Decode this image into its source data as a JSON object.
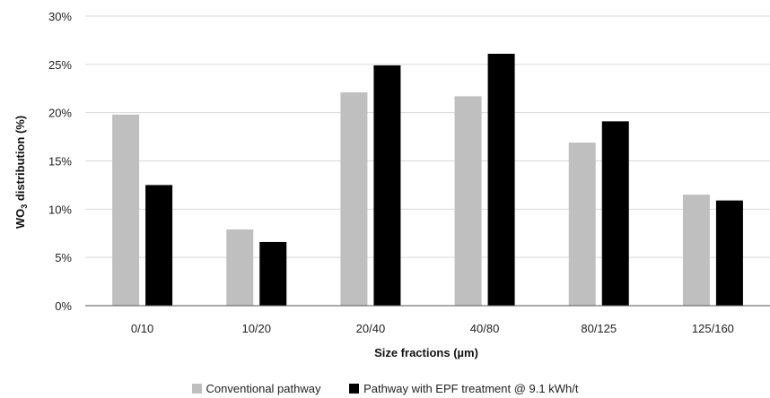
{
  "chart_data": {
    "type": "bar",
    "title": "",
    "xlabel": "Size fractions (µm)",
    "ylabel_main": "WO",
    "ylabel_sub": "3",
    "ylabel_rest": " distribution (%)",
    "categories": [
      "0/10",
      "10/20",
      "20/40",
      "40/80",
      "80/125",
      "125/160"
    ],
    "ylim": [
      0,
      30
    ],
    "yticks": [
      0,
      5,
      10,
      15,
      20,
      25,
      30
    ],
    "ytick_labels": [
      "0%",
      "5%",
      "10%",
      "15%",
      "20%",
      "25%",
      "30%"
    ],
    "grid": true,
    "legend_position": "bottom",
    "series": [
      {
        "name": "Conventional pathway",
        "color": "#bfbfbf",
        "values": [
          19.8,
          7.9,
          22.1,
          21.7,
          16.9,
          11.5
        ]
      },
      {
        "name": "Pathway with EPF treatment @ 9.1 kWh/t",
        "color": "#000000",
        "values": [
          12.5,
          6.6,
          24.9,
          26.1,
          19.1,
          10.9
        ]
      }
    ]
  }
}
